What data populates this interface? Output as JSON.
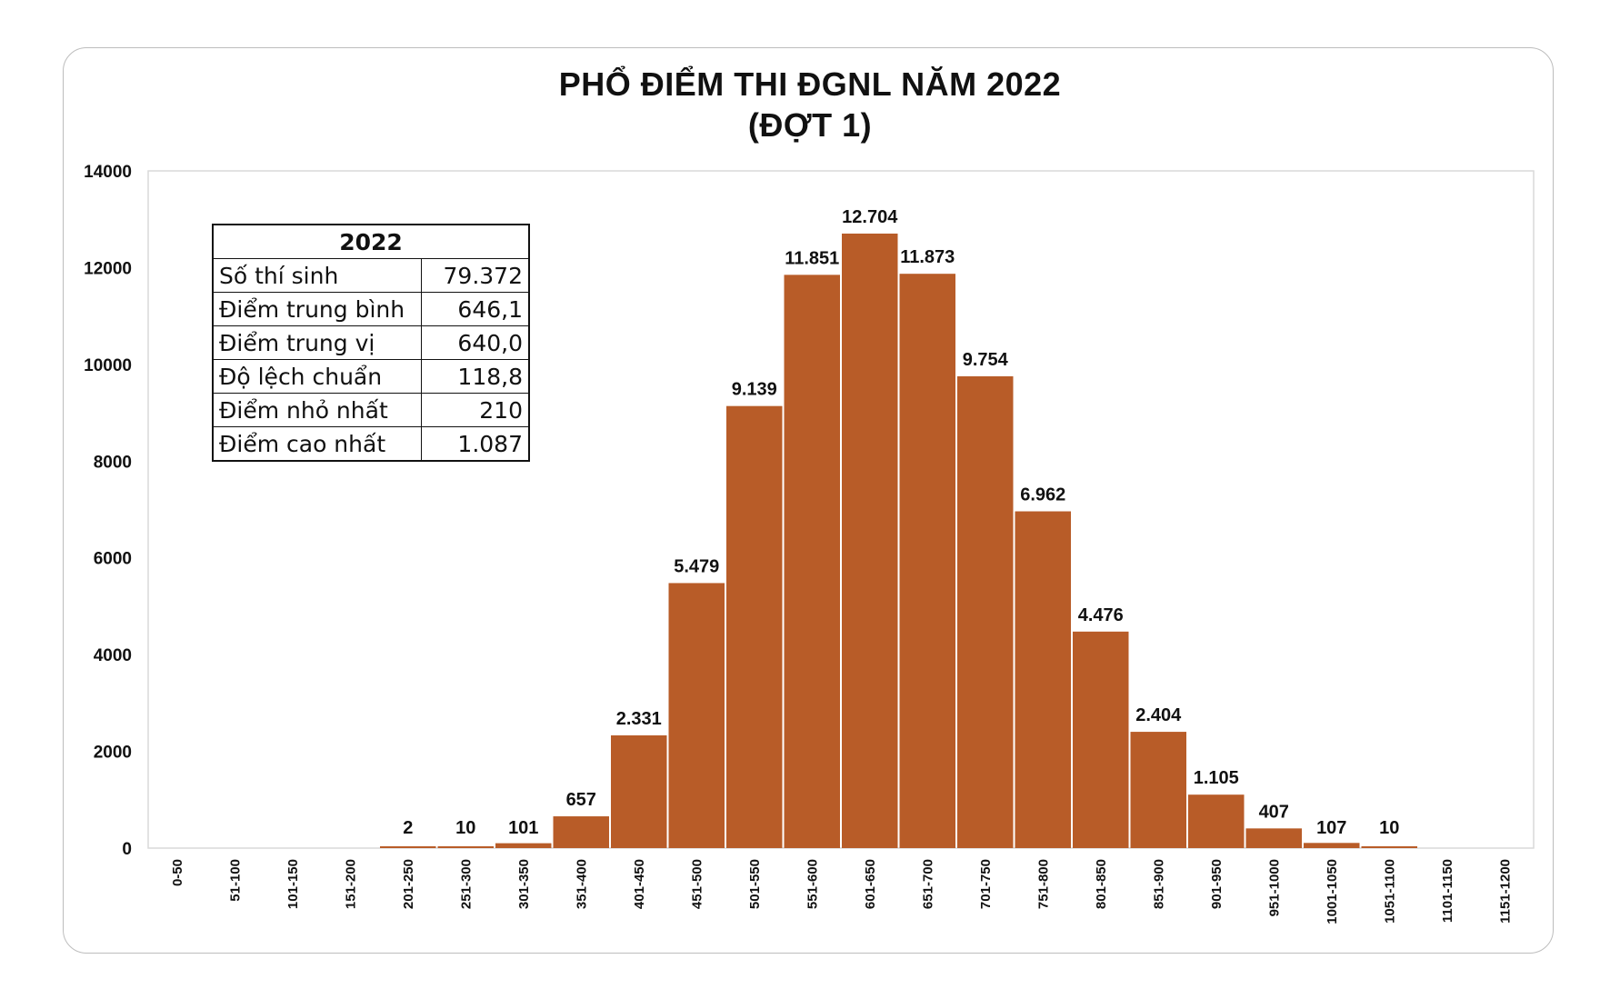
{
  "chart_data": {
    "type": "bar",
    "title": "PHỔ ĐIỂM THI ĐGNL NĂM 2022",
    "subtitle": "(ĐỢT 1)",
    "xlabel": "",
    "ylabel": "",
    "ylim": [
      0,
      14000
    ],
    "yticks": [
      0,
      2000,
      4000,
      6000,
      8000,
      10000,
      12000,
      14000
    ],
    "grid": false,
    "bar_color": "#b85c28",
    "categories": [
      "0-50",
      "51-100",
      "101-150",
      "151-200",
      "201-250",
      "251-300",
      "301-350",
      "351-400",
      "401-450",
      "451-500",
      "501-550",
      "551-600",
      "601-650",
      "651-700",
      "701-750",
      "751-800",
      "801-850",
      "851-900",
      "901-950",
      "951-1000",
      "1001-1050",
      "1051-1100",
      "1101-1150",
      "1151-1200"
    ],
    "values": [
      0,
      0,
      0,
      0,
      2,
      10,
      101,
      657,
      2331,
      5479,
      9139,
      11851,
      12704,
      11873,
      9754,
      6962,
      4476,
      2404,
      1105,
      407,
      107,
      10,
      0,
      0
    ],
    "data_labels": [
      "",
      "",
      "",
      "",
      "2",
      "10",
      "101",
      "657",
      "2.331",
      "5.479",
      "9.139",
      "11.851",
      "12.704",
      "11.873",
      "9.754",
      "6.962",
      "4.476",
      "2.404",
      "1.105",
      "407",
      "107",
      "10",
      "",
      ""
    ]
  },
  "stats_table": {
    "header": "2022",
    "rows": [
      {
        "label": "Số thí sinh",
        "value": "79.372"
      },
      {
        "label": "Điểm trung bình",
        "value": "646,1"
      },
      {
        "label": "Điểm trung vị",
        "value": "640,0"
      },
      {
        "label": "Độ lệch chuẩn",
        "value": "118,8"
      },
      {
        "label": "Điểm nhỏ nhất",
        "value": "210"
      },
      {
        "label": "Điểm cao nhất",
        "value": "1.087"
      }
    ]
  }
}
